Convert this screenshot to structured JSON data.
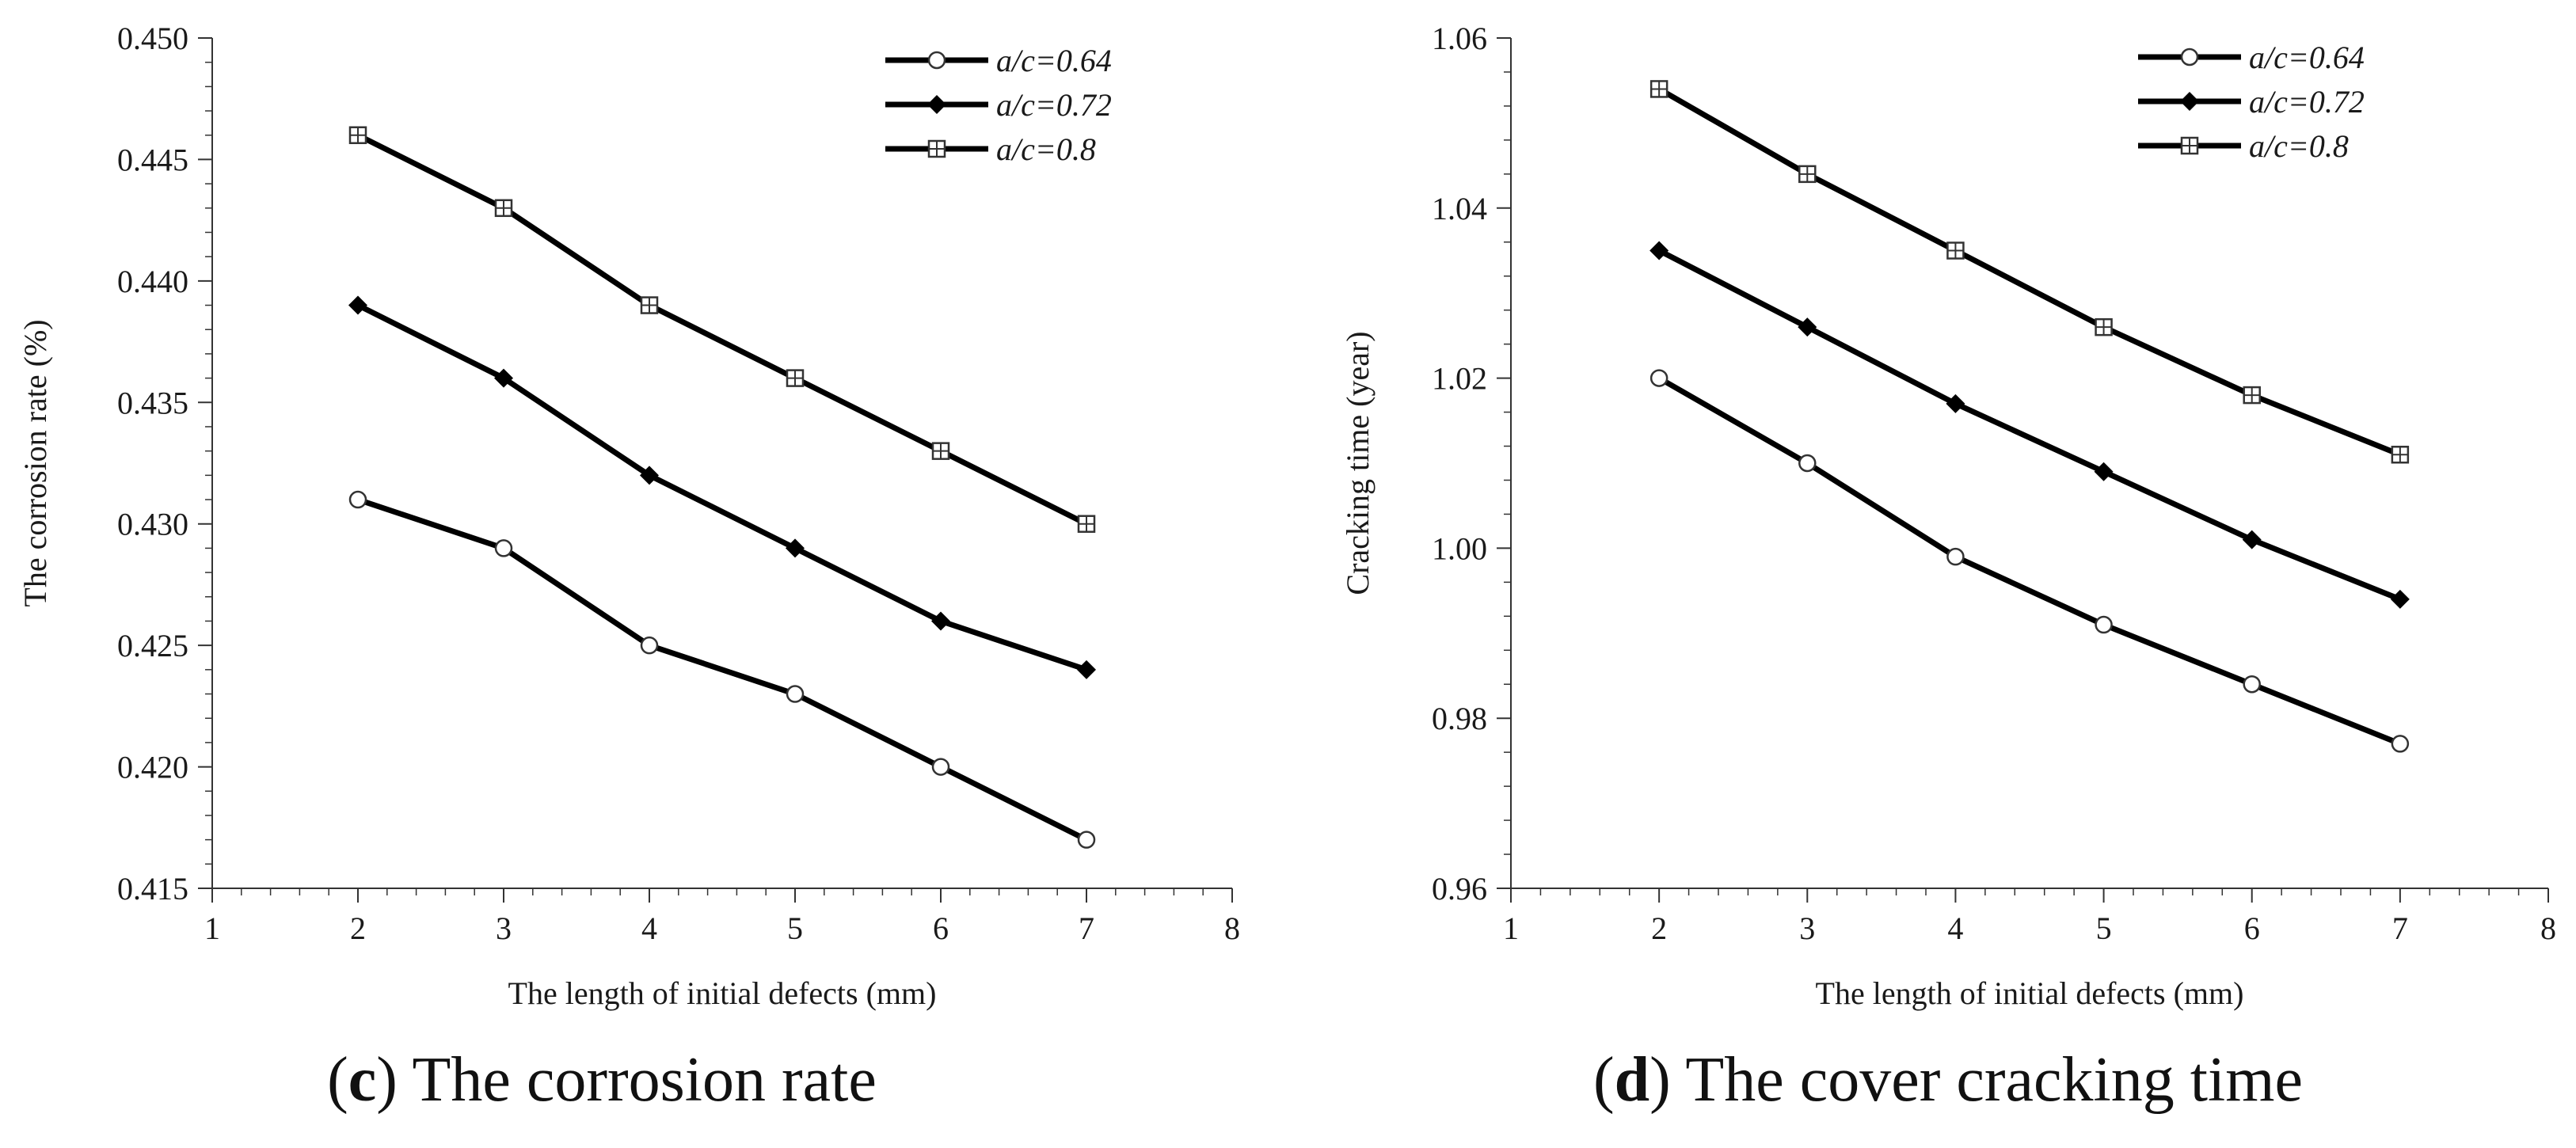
{
  "colors": {
    "line": "#000000",
    "axis": "#333333",
    "text": "#1a1a1a"
  },
  "chart_data": [
    {
      "panel": "c",
      "type": "line",
      "caption_letter": "c",
      "caption_text": " The corrosion rate",
      "xlabel": "The length of initial defects (mm)",
      "ylabel": "The corrosion rate (%)",
      "xlim": [
        1,
        8
      ],
      "ylim": [
        0.415,
        0.45
      ],
      "xticks": [
        1,
        2,
        3,
        4,
        5,
        6,
        7,
        8
      ],
      "yticks": [
        0.415,
        0.42,
        0.425,
        0.43,
        0.435,
        0.44,
        0.445,
        0.45
      ],
      "xtick_labels": [
        "1",
        "2",
        "3",
        "4",
        "5",
        "6",
        "7",
        "8"
      ],
      "ytick_labels": [
        "0.415",
        "0.420",
        "0.425",
        "0.430",
        "0.435",
        "0.440",
        "0.445",
        "0.450"
      ],
      "legend_position": "top-right",
      "x": [
        2,
        3,
        4,
        5,
        6,
        7
      ],
      "series": [
        {
          "name": "a/c=0.64",
          "marker": "circle",
          "values": [
            0.431,
            0.429,
            0.425,
            0.423,
            0.42,
            0.417
          ]
        },
        {
          "name": "a/c=0.72",
          "marker": "diamond",
          "values": [
            0.439,
            0.436,
            0.432,
            0.429,
            0.426,
            0.424
          ]
        },
        {
          "name": "a/c=0.8",
          "marker": "square-cross",
          "values": [
            0.446,
            0.443,
            0.439,
            0.436,
            0.433,
            0.43
          ]
        }
      ]
    },
    {
      "panel": "d",
      "type": "line",
      "caption_letter": "d",
      "caption_text": " The cover cracking time",
      "xlabel": "The length of initial defects (mm)",
      "ylabel": "Cracking time (year)",
      "xlim": [
        1,
        8
      ],
      "ylim": [
        0.96,
        1.06
      ],
      "xticks": [
        1,
        2,
        3,
        4,
        5,
        6,
        7,
        8
      ],
      "yticks": [
        0.96,
        0.98,
        1.0,
        1.02,
        1.04,
        1.06
      ],
      "xtick_labels": [
        "1",
        "2",
        "3",
        "4",
        "5",
        "6",
        "7",
        "8"
      ],
      "ytick_labels": [
        "0.96",
        "0.98",
        "1.00",
        "1.02",
        "1.04",
        "1.06"
      ],
      "legend_position": "top-right",
      "x": [
        2,
        3,
        4,
        5,
        6,
        7
      ],
      "series": [
        {
          "name": "a/c=0.64",
          "marker": "circle",
          "values": [
            1.02,
            1.01,
            0.999,
            0.991,
            0.984,
            0.977
          ]
        },
        {
          "name": "a/c=0.72",
          "marker": "diamond",
          "values": [
            1.035,
            1.026,
            1.017,
            1.009,
            1.001,
            0.994
          ]
        },
        {
          "name": "a/c=0.8",
          "marker": "square-cross",
          "values": [
            1.054,
            1.044,
            1.035,
            1.026,
            1.018,
            1.011
          ]
        }
      ]
    }
  ]
}
